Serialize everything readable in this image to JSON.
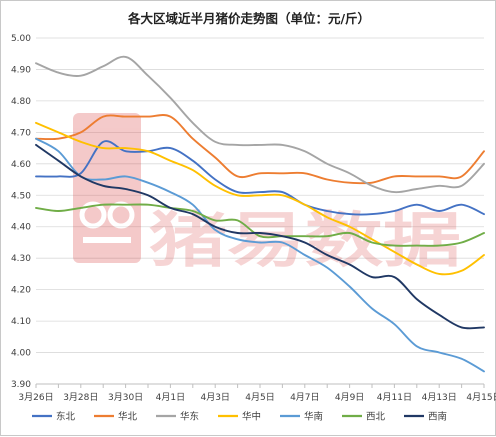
{
  "chart_data": {
    "type": "line",
    "title": "各大区域近半月猪价走势图（单位：元/斤）",
    "xlabel": "",
    "ylabel": "",
    "ylim": [
      3.9,
      5.0
    ],
    "yticks": [
      "5.00",
      "4.90",
      "4.80",
      "4.70",
      "4.60",
      "4.50",
      "4.40",
      "4.30",
      "4.20",
      "4.10",
      "4.00",
      "3.90"
    ],
    "ytick_values": [
      5.0,
      4.9,
      4.8,
      4.7,
      4.6,
      4.5,
      4.4,
      4.3,
      4.2,
      4.1,
      4.0,
      3.9
    ],
    "x": [
      "3月26日",
      "3月27日",
      "3月28日",
      "3月29日",
      "3月30日",
      "3月31日",
      "4月1日",
      "4月2日",
      "4月3日",
      "4月4日",
      "4月5日",
      "4月6日",
      "4月7日",
      "4月8日",
      "4月9日",
      "4月10日",
      "4月11日",
      "4月12日",
      "4月13日",
      "4月14日",
      "4月15日"
    ],
    "xtick_labels": [
      "3月26日",
      "3月28日",
      "3月30日",
      "4月1日",
      "4月3日",
      "4月5日",
      "4月7日",
      "4月9日",
      "4月11日",
      "4月13日",
      "4月15日"
    ],
    "xtick_indices": [
      0,
      2,
      4,
      6,
      8,
      10,
      12,
      14,
      16,
      18,
      20
    ],
    "grid": "horizontal",
    "legend_position": "bottom",
    "series": [
      {
        "name": "东北",
        "color": "#4472c4",
        "values": [
          4.56,
          4.56,
          4.57,
          4.67,
          4.64,
          4.64,
          4.65,
          4.61,
          4.55,
          4.51,
          4.51,
          4.51,
          4.47,
          4.45,
          4.44,
          4.44,
          4.45,
          4.47,
          4.45,
          4.47,
          4.44
        ]
      },
      {
        "name": "华北",
        "color": "#ed7d31",
        "values": [
          4.68,
          4.68,
          4.7,
          4.75,
          4.75,
          4.75,
          4.75,
          4.68,
          4.62,
          4.56,
          4.57,
          4.57,
          4.57,
          4.55,
          4.54,
          4.54,
          4.56,
          4.56,
          4.56,
          4.56,
          4.64
        ]
      },
      {
        "name": "华东",
        "color": "#a5a5a5",
        "values": [
          4.92,
          4.89,
          4.88,
          4.91,
          4.94,
          4.88,
          4.81,
          4.73,
          4.67,
          4.66,
          4.66,
          4.66,
          4.64,
          4.6,
          4.57,
          4.53,
          4.51,
          4.52,
          4.53,
          4.53,
          4.6
        ]
      },
      {
        "name": "华中",
        "color": "#ffc000",
        "values": [
          4.73,
          4.7,
          4.67,
          4.65,
          4.65,
          4.64,
          4.61,
          4.58,
          4.53,
          4.5,
          4.5,
          4.5,
          4.47,
          4.43,
          4.4,
          4.36,
          4.32,
          4.28,
          4.25,
          4.26,
          4.31
        ]
      },
      {
        "name": "华南",
        "color": "#5b9bd5",
        "values": [
          4.68,
          4.64,
          4.56,
          4.55,
          4.56,
          4.54,
          4.51,
          4.47,
          4.39,
          4.36,
          4.35,
          4.35,
          4.31,
          4.27,
          4.21,
          4.14,
          4.09,
          4.02,
          4.0,
          3.98,
          3.94
        ]
      },
      {
        "name": "西北",
        "color": "#70ad47",
        "values": [
          4.46,
          4.45,
          4.46,
          4.47,
          4.47,
          4.47,
          4.46,
          4.45,
          4.42,
          4.42,
          4.37,
          4.37,
          4.37,
          4.37,
          4.38,
          4.35,
          4.34,
          4.34,
          4.34,
          4.35,
          4.38
        ]
      },
      {
        "name": "西南",
        "color": "#203864",
        "values": [
          4.66,
          4.61,
          4.56,
          4.53,
          4.52,
          4.5,
          4.46,
          4.44,
          4.4,
          4.38,
          4.38,
          4.37,
          4.35,
          4.31,
          4.28,
          4.24,
          4.24,
          4.17,
          4.12,
          4.08,
          4.08
        ]
      }
    ]
  },
  "watermark": {
    "text": "猪易数据",
    "color": "#d93f3f"
  }
}
